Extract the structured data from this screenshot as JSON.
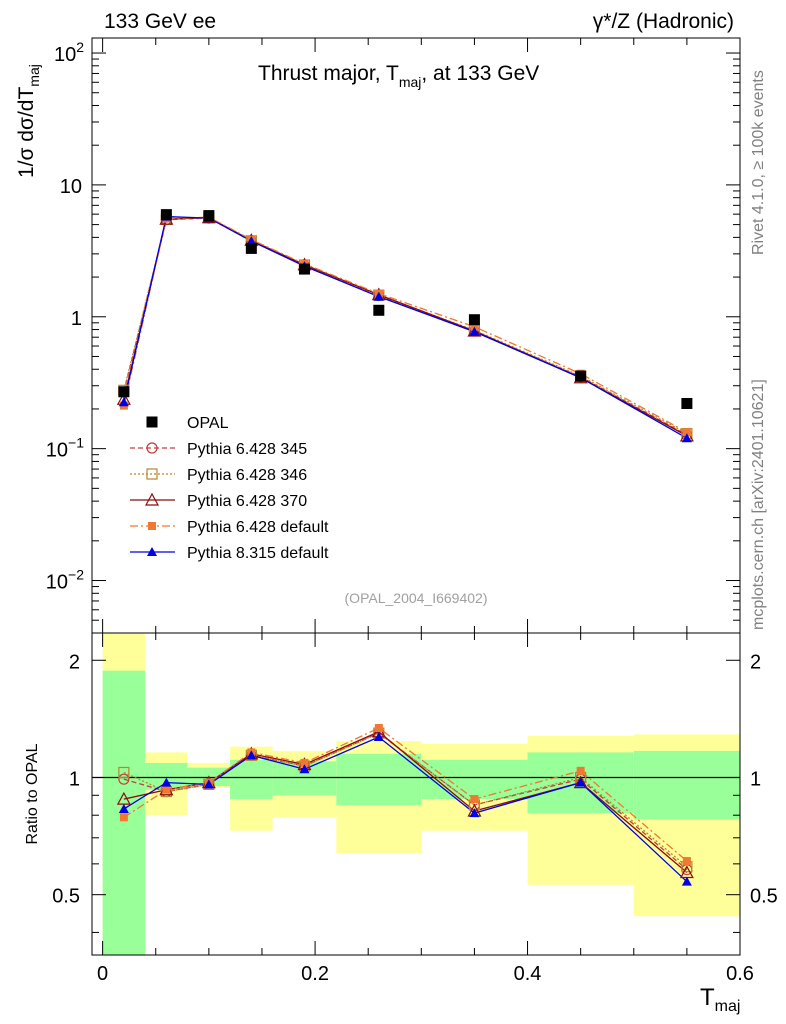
{
  "header": {
    "left_label": "133 GeV ee",
    "right_label": "γ*/Z (Hadronic)"
  },
  "side_labels": {
    "rivet": "Rivet 4.1.0, ≥ 100k events",
    "mcplots": "mcplots.cern.ch [arXiv:2401.10621]"
  },
  "chart_data": [
    {
      "type": "line",
      "panel": "main",
      "title": "Thrust major, T_maj, at 133 GeV",
      "title_main": "Thrust major, T",
      "title_sub": "maj",
      "title_tail": ", at 133 GeV",
      "ylabel_main": "1/σ  dσ/dT",
      "ylabel_sub": "maj",
      "xlabel_main": "T",
      "xlabel_sub": "maj",
      "watermark": "(OPAL_2004_I669402)",
      "yscale": "log",
      "ylim": [
        0.004,
        130
      ],
      "xlim": [
        -0.01,
        0.6
      ],
      "y_tick_labels": [
        {
          "v": 0.01,
          "base": "10",
          "exp": "−2"
        },
        {
          "v": 0.1,
          "base": "10",
          "exp": "−1"
        },
        {
          "v": 1,
          "text": "1"
        },
        {
          "v": 10,
          "text": "10"
        },
        {
          "v": 100,
          "base": "10",
          "exp": "2"
        }
      ],
      "x": [
        0.02,
        0.06,
        0.1,
        0.14,
        0.19,
        0.26,
        0.35,
        0.45,
        0.55
      ],
      "data": {
        "name": "OPAL",
        "values": [
          0.27,
          5.95,
          5.85,
          3.3,
          2.3,
          1.12,
          0.95,
          0.355,
          0.22
        ]
      },
      "series": [
        {
          "name": "Pythia 6.428 345",
          "color": "#c43c3c",
          "marker": "open-circle",
          "dash": "5,3",
          "values": [
            0.268,
            5.45,
            5.6,
            3.75,
            2.45,
            1.45,
            0.78,
            0.35,
            0.127
          ]
        },
        {
          "name": "Pythia 6.428 346",
          "color": "#b8862e",
          "marker": "open-square",
          "dash": "2,2",
          "values": [
            0.277,
            5.48,
            5.62,
            3.77,
            2.47,
            1.46,
            0.79,
            0.355,
            0.13
          ]
        },
        {
          "name": "Pythia 6.428 370",
          "color": "#8b0d0d",
          "marker": "open-triangle",
          "dash": "",
          "values": [
            0.237,
            5.5,
            5.65,
            3.8,
            2.48,
            1.47,
            0.78,
            0.345,
            0.125
          ]
        },
        {
          "name": "Pythia 6.428 default",
          "color": "#f07830",
          "marker": "filled-square",
          "dash": "8,3,2,3",
          "values": [
            0.212,
            5.55,
            5.7,
            3.85,
            2.52,
            1.5,
            0.84,
            0.37,
            0.133
          ]
        },
        {
          "name": "Pythia 8.315 default",
          "color": "#0000e6",
          "marker": "filled-triangle",
          "dash": "",
          "values": [
            0.225,
            5.75,
            5.6,
            3.75,
            2.42,
            1.42,
            0.77,
            0.345,
            0.12
          ]
        }
      ],
      "legend_position": "bottom-left"
    },
    {
      "type": "line",
      "panel": "ratio",
      "ylabel": "Ratio to OPAL",
      "ylim": [
        0.35,
        2.35
      ],
      "xlim": [
        -0.01,
        0.6
      ],
      "y_tick_labels": [
        0.5,
        1,
        2
      ],
      "x_tick_labels": [
        0,
        0.2,
        0.4,
        0.6
      ],
      "bins": [
        [
          0.0,
          0.04
        ],
        [
          0.04,
          0.08
        ],
        [
          0.08,
          0.12
        ],
        [
          0.12,
          0.16
        ],
        [
          0.16,
          0.22
        ],
        [
          0.22,
          0.3
        ],
        [
          0.3,
          0.4
        ],
        [
          0.4,
          0.5
        ],
        [
          0.5,
          0.6
        ]
      ],
      "band_stat": [
        [
          0.35,
          1.88
        ],
        [
          0.93,
          1.09
        ],
        [
          0.95,
          1.06
        ],
        [
          0.88,
          1.11
        ],
        [
          0.9,
          1.1
        ],
        [
          0.85,
          1.15
        ],
        [
          0.88,
          1.11
        ],
        [
          0.81,
          1.16
        ],
        [
          0.78,
          1.17
        ]
      ],
      "band_total": [
        [
          0.35,
          2.35
        ],
        [
          0.8,
          1.16
        ],
        [
          0.94,
          1.09
        ],
        [
          0.73,
          1.2
        ],
        [
          0.79,
          1.17
        ],
        [
          0.64,
          1.24
        ],
        [
          0.73,
          1.22
        ],
        [
          0.53,
          1.28
        ],
        [
          0.44,
          1.29
        ]
      ],
      "x": [
        0.02,
        0.06,
        0.1,
        0.14,
        0.19,
        0.26,
        0.35,
        0.45,
        0.55
      ],
      "series": [
        {
          "name": "Pythia 6.428 345",
          "values": [
            0.99,
            0.92,
            0.96,
            1.14,
            1.07,
            1.3,
            0.85,
            0.99,
            0.58
          ]
        },
        {
          "name": "Pythia 6.428 346",
          "values": [
            1.03,
            0.92,
            0.96,
            1.14,
            1.07,
            1.3,
            0.85,
            1.0,
            0.59
          ]
        },
        {
          "name": "Pythia 6.428 370",
          "values": [
            0.88,
            0.93,
            0.97,
            1.15,
            1.08,
            1.31,
            0.82,
            0.97,
            0.57
          ]
        },
        {
          "name": "Pythia 6.428 default",
          "values": [
            0.79,
            0.93,
            0.97,
            1.16,
            1.09,
            1.34,
            0.88,
            1.04,
            0.61
          ]
        },
        {
          "name": "Pythia 8.315 default",
          "values": [
            0.83,
            0.97,
            0.96,
            1.14,
            1.05,
            1.27,
            0.81,
            0.97,
            0.54
          ]
        }
      ]
    }
  ]
}
